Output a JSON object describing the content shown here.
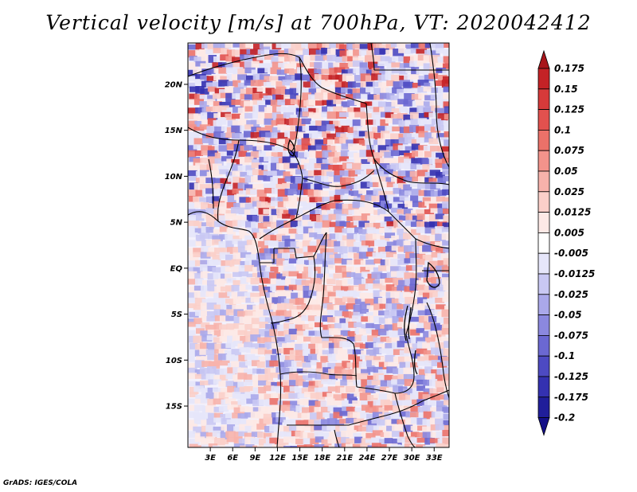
{
  "title": "Vertical velocity [m/s] at 700hPa, VT: 2020042412",
  "credit": "GrADS: IGES/COLA",
  "map": {
    "variable": "Vertical velocity",
    "units": "m/s",
    "level": "700hPa",
    "valid_time": "2020042412",
    "lat_range": [
      -19.5,
      24.5
    ],
    "lon_range": [
      0,
      35
    ],
    "lat_ticks": [
      {
        "value": 20,
        "label": "20N"
      },
      {
        "value": 15,
        "label": "15N"
      },
      {
        "value": 10,
        "label": "10N"
      },
      {
        "value": 5,
        "label": "5N"
      },
      {
        "value": 0,
        "label": "EQ"
      },
      {
        "value": -5,
        "label": "5S"
      },
      {
        "value": -10,
        "label": "10S"
      },
      {
        "value": -15,
        "label": "15S"
      }
    ],
    "lon_ticks": [
      {
        "value": 3,
        "label": "3E"
      },
      {
        "value": 6,
        "label": "6E"
      },
      {
        "value": 9,
        "label": "9E"
      },
      {
        "value": 12,
        "label": "12E"
      },
      {
        "value": 15,
        "label": "15E"
      },
      {
        "value": 18,
        "label": "18E"
      },
      {
        "value": 21,
        "label": "21E"
      },
      {
        "value": 24,
        "label": "24E"
      },
      {
        "value": 27,
        "label": "27E"
      },
      {
        "value": 30,
        "label": "30E"
      },
      {
        "value": 33,
        "label": "33E"
      }
    ]
  },
  "colorbar": {
    "labels": [
      "0.175",
      "0.15",
      "0.125",
      "0.1",
      "0.075",
      "0.05",
      "0.025",
      "0.0125",
      "0.005",
      "-0.005",
      "-0.0125",
      "-0.025",
      "-0.05",
      "-0.075",
      "-0.1",
      "-0.125",
      "-0.175",
      "-0.2"
    ],
    "colors": [
      "#a8151b",
      "#c42226",
      "#d63a3a",
      "#e2514e",
      "#eb7169",
      "#f3938b",
      "#f7b2ab",
      "#fbcfc9",
      "#fde9e6",
      "#ffffff",
      "#e6e6fa",
      "#c9c8f3",
      "#aaa8ea",
      "#8b88df",
      "#6b68d2",
      "#4d4ac2",
      "#3431b0",
      "#201e9a",
      "#141088"
    ]
  }
}
